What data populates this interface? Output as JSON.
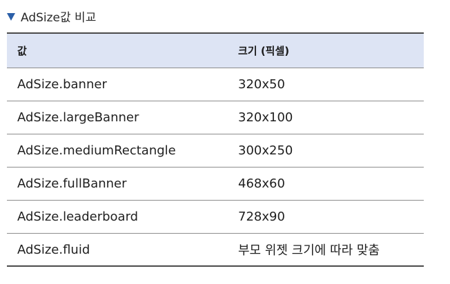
{
  "caption": {
    "text": "AdSize값 비교"
  },
  "table": {
    "headers": [
      "값",
      "크기 (픽셀)"
    ],
    "rows": [
      [
        "AdSize.banner",
        "320x50"
      ],
      [
        "AdSize.largeBanner",
        "320x100"
      ],
      [
        "AdSize.mediumRectangle",
        "300x250"
      ],
      [
        "AdSize.fullBanner",
        "468x60"
      ],
      [
        "AdSize.leaderboard",
        "728x90"
      ],
      [
        "AdSize.fluid",
        "부모 위젯 크기에 따라 맞춤"
      ]
    ]
  },
  "colors": {
    "header_bg": "#dde4f4",
    "caption_marker": "#2b5fa8"
  },
  "icons": {
    "caption_marker": "triangle-down-icon"
  }
}
